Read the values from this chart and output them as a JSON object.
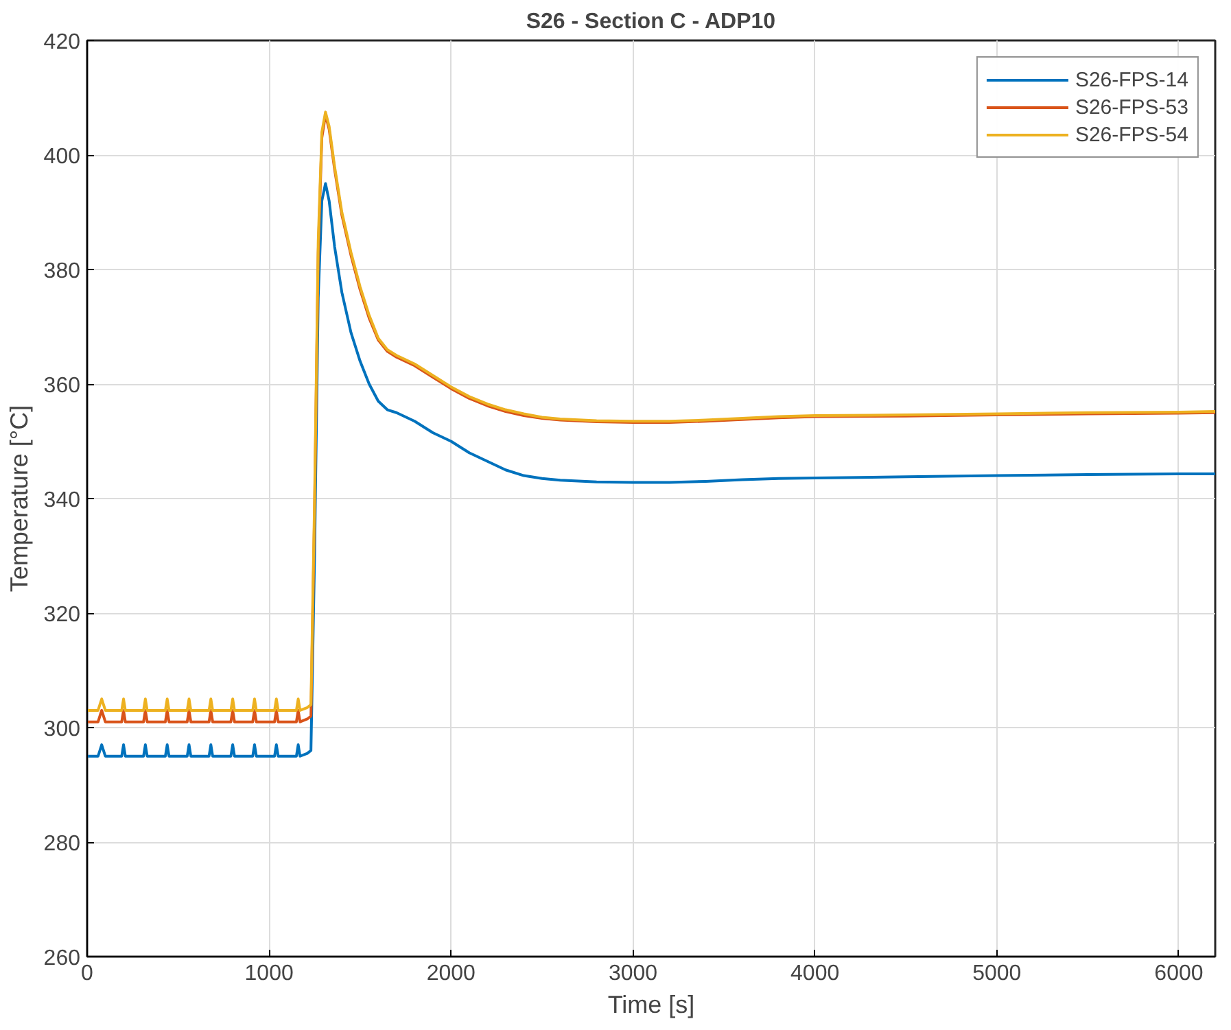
{
  "chart_data": {
    "type": "line",
    "title": "S26 - Section C - ADP10",
    "xlabel": "Time [s]",
    "ylabel": "Temperature [°C]",
    "x": [
      0,
      60,
      80,
      100,
      190,
      200,
      210,
      310,
      320,
      330,
      430,
      440,
      450,
      550,
      560,
      570,
      670,
      680,
      690,
      790,
      800,
      810,
      910,
      920,
      930,
      1030,
      1040,
      1050,
      1150,
      1160,
      1170,
      1210,
      1230,
      1250,
      1270,
      1290,
      1310,
      1330,
      1360,
      1400,
      1450,
      1500,
      1550,
      1600,
      1650,
      1700,
      1800,
      1900,
      2000,
      2100,
      2200,
      2300,
      2400,
      2500,
      2600,
      2800,
      3000,
      3200,
      3400,
      3600,
      3800,
      4000,
      4500,
      5000,
      5500,
      6000,
      6200
    ],
    "series": [
      {
        "name": "S26-FPS-14",
        "color": "#0072bd",
        "values": [
          295,
          295,
          297,
          295,
          295,
          297,
          295,
          295,
          297,
          295,
          295,
          297,
          295,
          295,
          297,
          295,
          295,
          297,
          295,
          295,
          297,
          295,
          295,
          297,
          295,
          295,
          297,
          295,
          295,
          297,
          295,
          295.5,
          296,
          330,
          375,
          392,
          395,
          392,
          384,
          376,
          369,
          364,
          360,
          357,
          355.5,
          355,
          353.5,
          351.5,
          350,
          348,
          346.5,
          345,
          344,
          343.5,
          343.2,
          342.9,
          342.8,
          342.8,
          343,
          343.3,
          343.5,
          343.6,
          343.8,
          344,
          344.2,
          344.3,
          344.3
        ]
      },
      {
        "name": "S26-FPS-53",
        "color": "#d95319",
        "values": [
          301,
          301,
          303,
          301,
          301,
          303,
          301,
          301,
          303,
          301,
          301,
          303,
          301,
          301,
          303,
          301,
          301,
          303,
          301,
          301,
          303,
          301,
          301,
          303,
          301,
          301,
          303,
          301,
          301,
          303,
          301,
          301.5,
          302,
          338,
          383,
          403,
          407,
          404.5,
          397.5,
          389.5,
          382.5,
          376.5,
          371.5,
          367.7,
          365.7,
          364.7,
          363.2,
          361.2,
          359.2,
          357.5,
          356.2,
          355.2,
          354.5,
          354,
          353.7,
          353.4,
          353.3,
          353.3,
          353.5,
          353.8,
          354.1,
          354.3,
          354.4,
          354.6,
          354.8,
          354.9,
          355
        ]
      },
      {
        "name": "S26-FPS-54",
        "color": "#edb120",
        "values": [
          303,
          303,
          305,
          303,
          303,
          305,
          303,
          303,
          305,
          303,
          303,
          305,
          303,
          303,
          305,
          303,
          303,
          305,
          303,
          303,
          305,
          303,
          303,
          305,
          303,
          303,
          305,
          303,
          303,
          305,
          303,
          303.5,
          304,
          340,
          385,
          404,
          407.5,
          405,
          398,
          390,
          383,
          377,
          372,
          368,
          366,
          365,
          363.5,
          361.5,
          359.5,
          357.8,
          356.5,
          355.5,
          354.8,
          354.2,
          353.9,
          353.6,
          353.5,
          353.5,
          353.7,
          354,
          354.3,
          354.5,
          354.6,
          354.8,
          355,
          355.1,
          355.2
        ]
      }
    ],
    "xlim": [
      0,
      6200
    ],
    "xticks": [
      0,
      1000,
      2000,
      3000,
      4000,
      5000,
      6000
    ],
    "ylim": [
      260,
      420
    ],
    "yticks": [
      260,
      280,
      300,
      320,
      340,
      360,
      380,
      400,
      420
    ],
    "grid": true,
    "legend": "top right"
  }
}
